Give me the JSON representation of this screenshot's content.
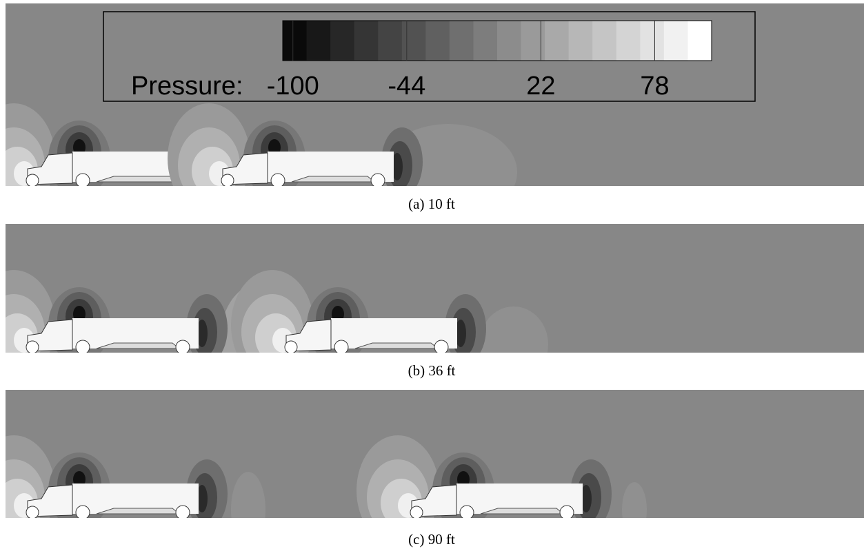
{
  "figure": {
    "legend": {
      "label": "Pressure:",
      "lim": [
        -105,
        106
      ],
      "ticks": [
        -100,
        -44,
        22,
        78
      ]
    },
    "panels": [
      {
        "caption": "(a) 10 ft"
      },
      {
        "caption": "(b) 36 ft"
      },
      {
        "caption": "(c) 90 ft"
      }
    ]
  }
}
